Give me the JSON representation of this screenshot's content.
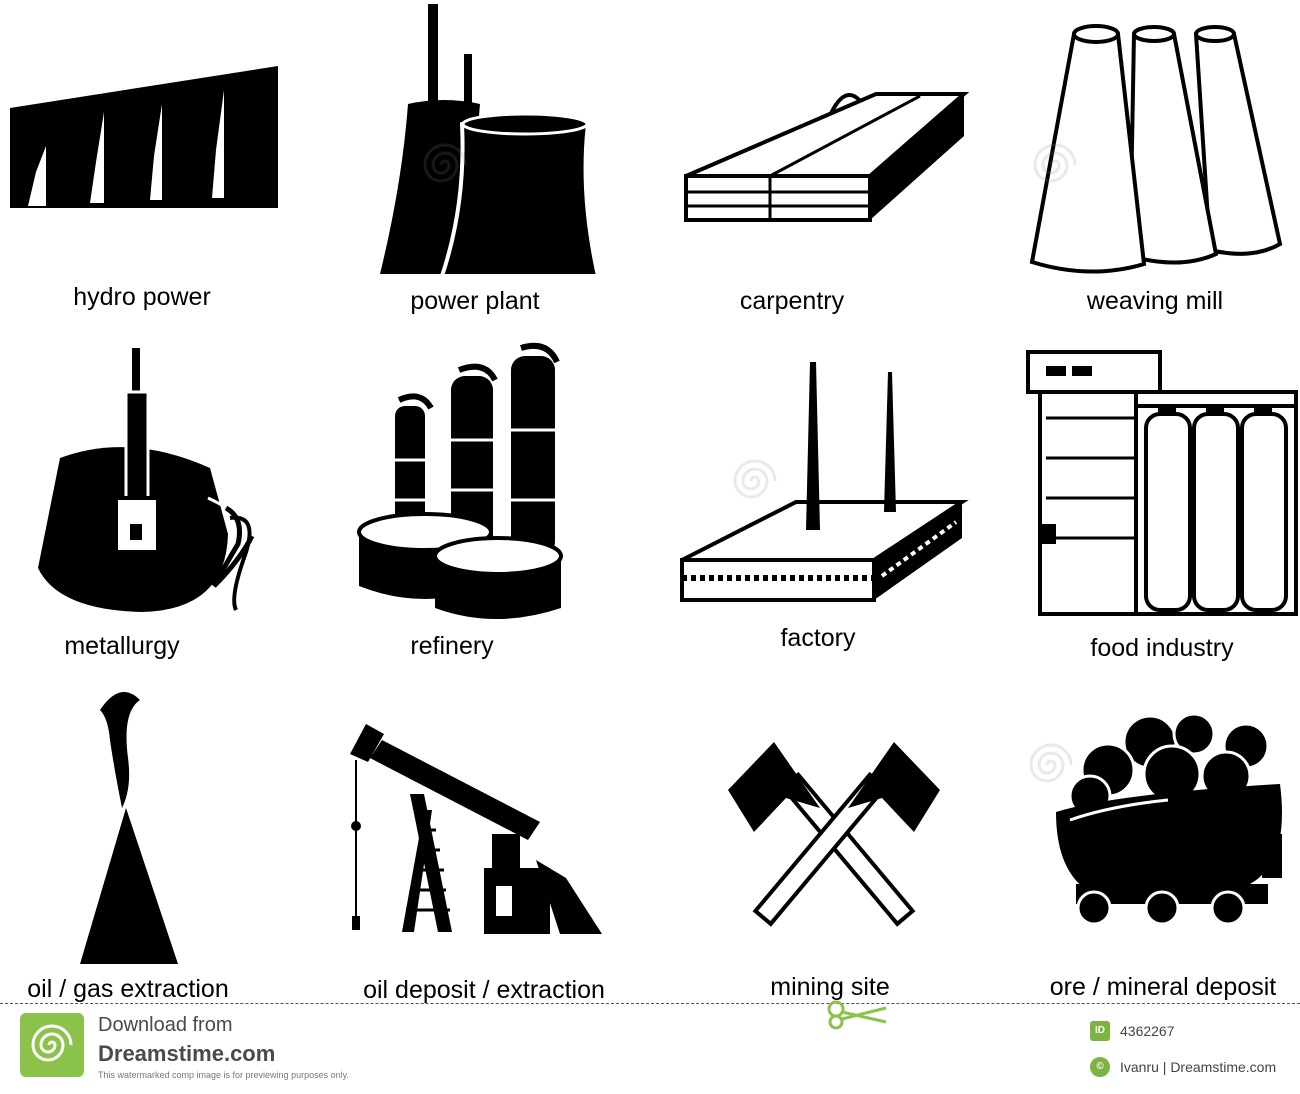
{
  "icons": [
    {
      "name": "hydro-power-icon",
      "label": "hydro power"
    },
    {
      "name": "power-plant-icon",
      "label": "power plant"
    },
    {
      "name": "carpentry-icon",
      "label": "carpentry"
    },
    {
      "name": "weaving-mill-icon",
      "label": "weaving mill"
    },
    {
      "name": "metallurgy-icon",
      "label": "metallurgy"
    },
    {
      "name": "refinery-icon",
      "label": "refinery"
    },
    {
      "name": "factory-icon",
      "label": "factory"
    },
    {
      "name": "food-industry-icon",
      "label": "food industry"
    },
    {
      "name": "oil-gas-extraction-icon",
      "label": "oil / gas extraction"
    },
    {
      "name": "oil-deposit-extraction-icon",
      "label": "oil deposit / extraction"
    },
    {
      "name": "mining-site-icon",
      "label": "mining site"
    },
    {
      "name": "ore-mineral-deposit-icon",
      "label": "ore / mineral deposit"
    }
  ],
  "footer": {
    "download_from": "Download from",
    "site": "Dreamstime.com",
    "notice": "This watermarked comp image is for previewing purposes only.",
    "id_badge": "ID",
    "image_id": "4362267",
    "copyright_badge": "©",
    "credit": "Ivanru | Dreamstime.com"
  },
  "colors": {
    "ink": "#000000",
    "background": "#ffffff",
    "badge": "#7cb342",
    "footer_text": "#4a4a4a"
  }
}
